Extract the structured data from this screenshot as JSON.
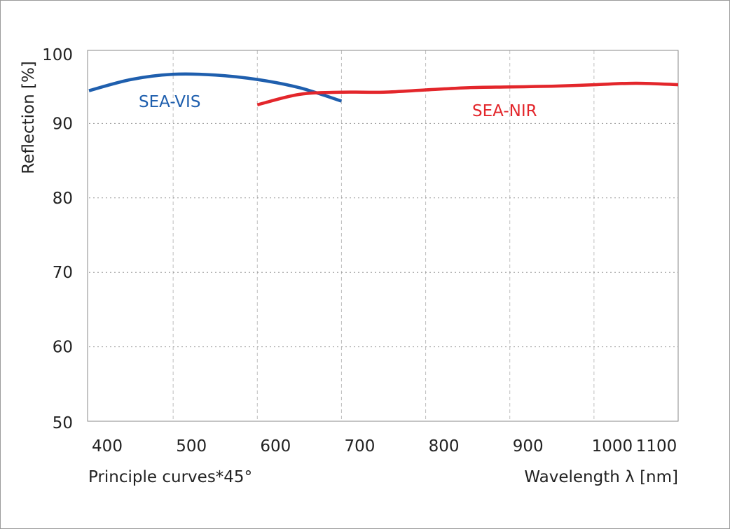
{
  "chart_data": {
    "type": "line",
    "title": "",
    "xlabel": "Wavelength λ [nm]",
    "ylabel": "Reflection [%]",
    "note": "Principle curves*45°",
    "xlim": [
      400,
      1100
    ],
    "ylim": [
      50,
      100
    ],
    "xticks": [
      400,
      500,
      600,
      700,
      800,
      900,
      1000,
      1100
    ],
    "yticks": [
      50,
      60,
      70,
      80,
      90,
      100
    ],
    "grid": true,
    "series": [
      {
        "name": "SEA-VIS",
        "color": "#1f5fae",
        "x": [
          400,
          450,
          500,
          550,
          600,
          650,
          700
        ],
        "y": [
          94.4,
          95.9,
          96.6,
          96.5,
          95.9,
          94.8,
          93.0
        ]
      },
      {
        "name": "SEA-NIR",
        "color": "#e3262b",
        "x": [
          600,
          650,
          700,
          750,
          800,
          850,
          900,
          950,
          1000,
          1050,
          1100
        ],
        "y": [
          92.5,
          93.9,
          94.2,
          94.2,
          94.5,
          94.8,
          94.9,
          95.0,
          95.2,
          95.4,
          95.2
        ]
      }
    ]
  }
}
